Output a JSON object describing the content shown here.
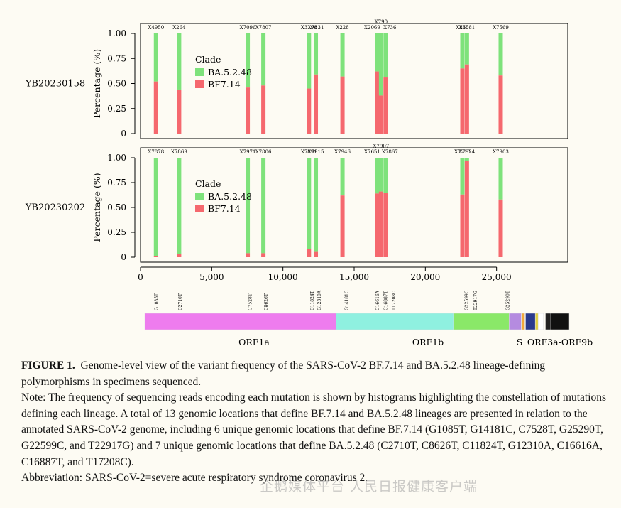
{
  "colors": {
    "ba": "#7ee27b",
    "bf": "#f5686e",
    "orf1a": "#ee7cee",
    "orf1b": "#8ff0e0",
    "s": "#8ae868",
    "orf3a": "#b58be0"
  },
  "chart_data": {
    "type": "bar",
    "subtype": "stacked-bar-genome",
    "xlim": [
      0,
      30000
    ],
    "ylim": [
      0,
      1
    ],
    "x_ticks": [
      0,
      5000,
      10000,
      15000,
      20000,
      25000
    ],
    "x_tick_labels": [
      "0",
      "5,000",
      "10,000",
      "15,000",
      "20,000",
      "25,000"
    ],
    "y_ticks": [
      0,
      0.25,
      0.5,
      0.75,
      1.0
    ],
    "y_tick_labels": [
      "0",
      "0.25",
      "0.50",
      "0.75",
      "1.00"
    ],
    "ylabel": "Percentage (%)",
    "legend_title": "Clade",
    "legend_position": "top-left-inside",
    "series": [
      {
        "name": "BA.5.2.48"
      },
      {
        "name": "BF7.14"
      }
    ],
    "panels": [
      {
        "sample": "YB20230158",
        "bars": [
          {
            "x": 1085,
            "bf7": 0.52,
            "label": "X4950"
          },
          {
            "x": 2710,
            "bf7": 0.44,
            "label": "X264"
          },
          {
            "x": 7528,
            "bf7": 0.46,
            "label": "X7096"
          },
          {
            "x": 8626,
            "bf7": 0.48,
            "label": "X7807"
          },
          {
            "x": 11824,
            "bf7": 0.45,
            "label": "X3198"
          },
          {
            "x": 12310,
            "bf7": 0.59,
            "label": "X7831"
          },
          {
            "x": 14181,
            "bf7": 0.57,
            "label": "X228"
          },
          {
            "x": 16616,
            "bf7": 0.62,
            "label": "X2069"
          },
          {
            "x": 16887,
            "bf7": 0.38,
            "label": "X790"
          },
          {
            "x": 17208,
            "bf7": 0.56,
            "label": "X736"
          },
          {
            "x": 22599,
            "bf7": 0.65,
            "label": "X865"
          },
          {
            "x": 22917,
            "bf7": 0.69,
            "label": "X3081"
          },
          {
            "x": 25290,
            "bf7": 0.58,
            "label": "X7569"
          }
        ]
      },
      {
        "sample": "YB20230202",
        "bars": [
          {
            "x": 1085,
            "bf7": 0.01,
            "label": "X7878"
          },
          {
            "x": 2710,
            "bf7": 0.03,
            "label": "X7869"
          },
          {
            "x": 7528,
            "bf7": 0.04,
            "label": "X7971"
          },
          {
            "x": 8626,
            "bf7": 0.04,
            "label": "X7806"
          },
          {
            "x": 11824,
            "bf7": 0.08,
            "label": "X7891"
          },
          {
            "x": 12310,
            "bf7": 0.06,
            "label": "X7915"
          },
          {
            "x": 14181,
            "bf7": 0.62,
            "label": "X7946"
          },
          {
            "x": 16616,
            "bf7": 0.64,
            "label": "X7651"
          },
          {
            "x": 16887,
            "bf7": 0.66,
            "label": "X7907"
          },
          {
            "x": 17208,
            "bf7": 0.65,
            "label": "X7867"
          },
          {
            "x": 22599,
            "bf7": 0.63,
            "label": "X7210"
          },
          {
            "x": 22917,
            "bf7": 0.97,
            "label": "X7924"
          },
          {
            "x": 25290,
            "bf7": 0.58,
            "label": "X7903"
          }
        ]
      }
    ],
    "genome": {
      "segments": [
        {
          "name": "ORF1a",
          "start": 266,
          "end": 13468,
          "color": "#ee7cee",
          "label": "ORF1a"
        },
        {
          "name": "ORF1b",
          "start": 13468,
          "end": 21555,
          "color": "#8ff0e0",
          "label": "ORF1b"
        },
        {
          "name": "S",
          "start": 21563,
          "end": 25384,
          "color": "#8ae868",
          "label": "S"
        },
        {
          "name": "ORF3a",
          "start": 25393,
          "end": 26220,
          "color": "#b58be0",
          "label": "ORF3a-ORF9b"
        },
        {
          "name": "E",
          "start": 26245,
          "end": 26472,
          "color": "#f2a93b",
          "label": ""
        },
        {
          "name": "M",
          "start": 26523,
          "end": 27191,
          "color": "#2a3a8c",
          "label": ""
        },
        {
          "name": "ORF6",
          "start": 27202,
          "end": 27387,
          "color": "#e0d040",
          "label": ""
        },
        {
          "name": "ORF7",
          "start": 27394,
          "end": 27759,
          "color": "#ffffff",
          "label": ""
        },
        {
          "name": "ORF8",
          "start": 27894,
          "end": 28259,
          "color": "#222222",
          "label": ""
        },
        {
          "name": "N",
          "start": 28274,
          "end": 29533,
          "color": "#111111",
          "label": ""
        }
      ],
      "mutations": [
        {
          "pos": 1085,
          "label": "G1085T"
        },
        {
          "pos": 2710,
          "label": "C2710T"
        },
        {
          "pos": 7528,
          "label": "C7528T"
        },
        {
          "pos": 8626,
          "label": "C8626T"
        },
        {
          "pos": 11824,
          "label": "C11824T"
        },
        {
          "pos": 12310,
          "label": "G12310A"
        },
        {
          "pos": 14181,
          "label": "G14181C"
        },
        {
          "pos": 16616,
          "label": "C16616A"
        },
        {
          "pos": 16887,
          "label": "C16887T"
        },
        {
          "pos": 17208,
          "label": "T17208C"
        },
        {
          "pos": 22599,
          "label": "G22599C"
        },
        {
          "pos": 22917,
          "label": "T22917G"
        },
        {
          "pos": 25290,
          "label": "G25290T"
        }
      ]
    }
  },
  "caption": {
    "figure_label": "FIGURE 1.",
    "figure_text": "Genome-level view of the variant frequency of the SARS-CoV-2 BF.7.14 and BA.5.2.48 lineage-defining polymorphisms in specimens sequenced.",
    "note": "Note: The frequency of sequencing reads encoding each mutation is shown by histograms highlighting the constellation of mutations defining each lineage. A total of 13 genomic locations that define BF.7.14 and BA.5.2.48 lineages are presented in relation to the annotated SARS-CoV-2 genome, including 6 unique genomic locations that define BF.7.14 (G1085T, G14181C, C7528T, G25290T, G22599C, and T22917G) and 7 unique genomic locations that define BA.5.2.48 (C2710T, C8626T, C11824T, G12310A, C16616A, C16887T, and T17208C).",
    "abbreviation": "Abbreviation: SARS-CoV-2=severe acute respiratory syndrome coronavirus 2."
  },
  "watermark": "企鹅媒体平台 人民日报健康客户端"
}
